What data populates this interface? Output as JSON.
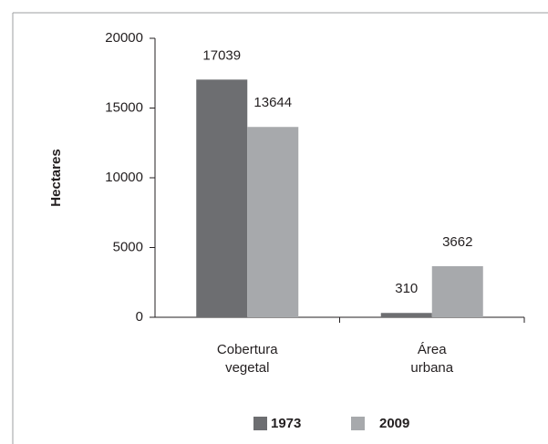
{
  "chart_data": {
    "type": "bar",
    "y_label": "Hectares",
    "categories": [
      "Cobertura vegetal",
      "Área urbana"
    ],
    "series": [
      {
        "name": "1973",
        "color": "#6d6e71",
        "values": [
          17039,
          310
        ]
      },
      {
        "name": "2009",
        "color": "#a7a9ac",
        "values": [
          13644,
          3662
        ]
      }
    ],
    "ylim": [
      0,
      20000
    ],
    "yticks": [
      0,
      5000,
      10000,
      15000,
      20000
    ],
    "grid": false,
    "legend": "bottom"
  }
}
